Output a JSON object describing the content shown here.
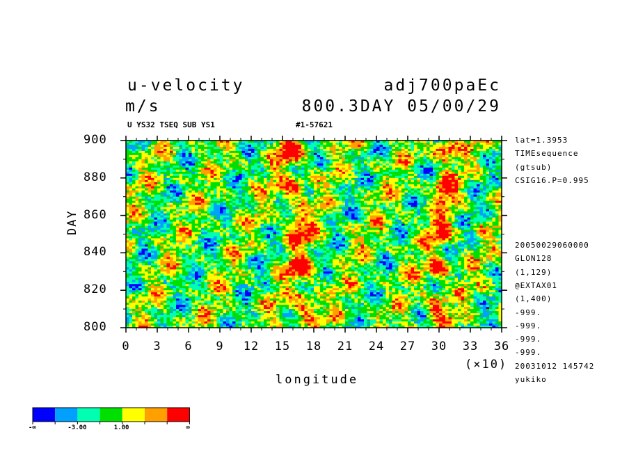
{
  "header": {
    "variable": "u-velocity",
    "units": "m/s",
    "run_name": "adj700paEc",
    "time_label": "800.3DAY 05/00/29",
    "subtitle_left": "U YS32 TSEQ SUB YS1",
    "subtitle_right": "#1-57621"
  },
  "side_info_top": [
    "lat=1.3953",
    "TIMEsequence",
    "(gtsub)",
    "CSIG16.P=0.995"
  ],
  "side_info_bottom": [
    "20050029060000",
    "GLON128",
    "(1,129)",
    "@EXTAX01",
    "(1,400)",
    "-999.",
    "-999.",
    "-999.",
    "-999.",
    "20031012 145742",
    "yukiko"
  ],
  "chart_data": {
    "type": "heatmap",
    "xlabel": "longitude",
    "ylabel": "DAY",
    "x_scale_label": "(×10)",
    "xlim": [
      0,
      36
    ],
    "ylim": [
      800,
      900
    ],
    "x_ticks": [
      "0",
      "3",
      "6",
      "9",
      "12",
      "15",
      "18",
      "21",
      "24",
      "27",
      "30",
      "33",
      "36"
    ],
    "y_ticks": [
      "800",
      "820",
      "840",
      "860",
      "880",
      "900"
    ],
    "colorbar": {
      "colors": [
        "#0000ff",
        "#00a0ff",
        "#00ffb0",
        "#00e000",
        "#ffff00",
        "#ffa000",
        "#ff0000"
      ],
      "labels": [
        "-∞",
        "-3.00",
        "1.00",
        "∞"
      ]
    }
  },
  "colors": {
    "axis": "#000000",
    "background": "#ffffff"
  }
}
